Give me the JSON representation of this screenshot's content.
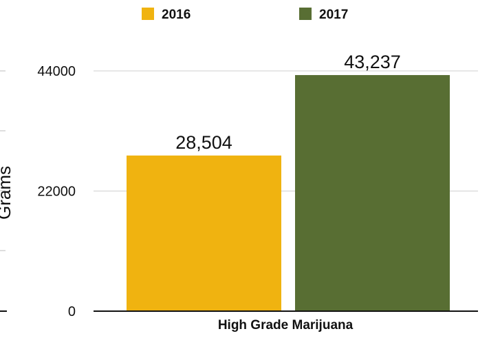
{
  "chart_data": {
    "type": "bar",
    "categories": [
      "High Grade Marijuana"
    ],
    "series": [
      {
        "name": "2016",
        "values": [
          28504
        ],
        "label": "28,504",
        "color": "#f0b310"
      },
      {
        "name": "2017",
        "values": [
          43237
        ],
        "label": "43,237",
        "color": "#586e33"
      }
    ],
    "xlabel": "High Grade Marijuana",
    "ylabel": "Grams",
    "ylim": [
      0,
      44000
    ],
    "yticks": [
      {
        "value": 0,
        "label": "0"
      },
      {
        "value": 22000,
        "label": "22000"
      },
      {
        "value": 44000,
        "label": "44000"
      }
    ],
    "grid": true,
    "legend_position": "top-center",
    "gridline_color": "#cfcfcf",
    "axis_color": "#111111"
  }
}
